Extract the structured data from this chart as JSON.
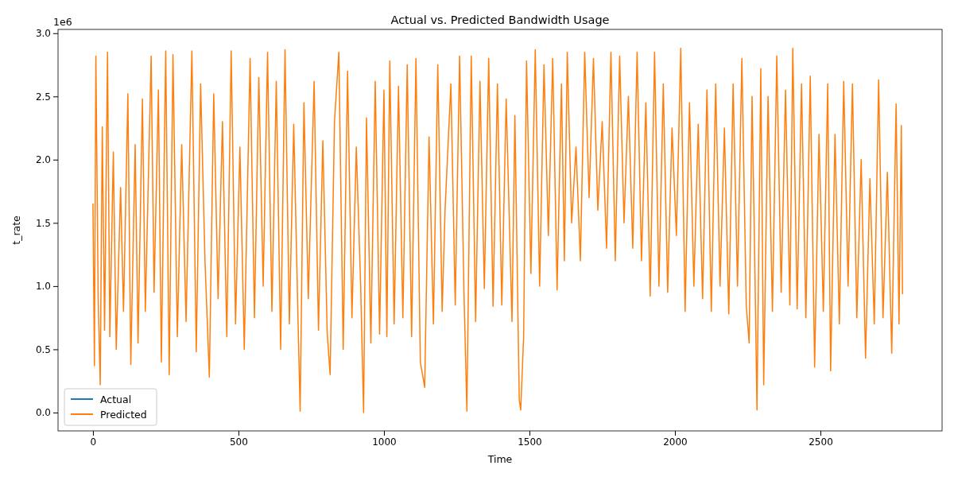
{
  "chart_data": {
    "type": "line",
    "title": "Actual vs. Predicted Bandwidth Usage",
    "xlabel": "Time",
    "ylabel": "t_rate",
    "annotations": [
      "1e6"
    ],
    "xlim": [
      -120,
      2918
    ],
    "xticks": [
      0,
      500,
      1000,
      1500,
      2000,
      2500
    ],
    "ylim": [
      -0.145,
      3.03
    ],
    "yticks": [
      {
        "value": 0,
        "label": "0.0"
      },
      {
        "value": 0.5,
        "label": "0.5"
      },
      {
        "value": 1,
        "label": "1.0"
      },
      {
        "value": 1.5,
        "label": "1.5"
      },
      {
        "value": 2,
        "label": "2.0"
      },
      {
        "value": 2.5,
        "label": "2.5"
      },
      {
        "value": 3,
        "label": "3.0"
      }
    ],
    "grid": false,
    "legend": "bottom left",
    "line_style": "solid",
    "marker": "none",
    "series": [
      {
        "name": "Actual",
        "color": "#1f77b4"
      },
      {
        "name": "Predicted",
        "color": "#ff7f0e",
        "x": [
          0,
          5,
          10,
          18,
          25,
          32,
          40,
          50,
          58,
          70,
          80,
          95,
          105,
          120,
          130,
          145,
          155,
          170,
          180,
          200,
          210,
          225,
          235,
          250,
          262,
          275,
          290,
          305,
          320,
          340,
          355,
          370,
          385,
          400,
          415,
          430,
          445,
          460,
          475,
          490,
          505,
          520,
          540,
          555,
          570,
          585,
          600,
          615,
          630,
          645,
          660,
          675,
          690,
          705,
          712,
          725,
          740,
          760,
          775,
          790,
          805,
          815,
          830,
          845,
          860,
          875,
          890,
          905,
          920,
          930,
          940,
          955,
          970,
          985,
          1000,
          1010,
          1020,
          1035,
          1050,
          1065,
          1080,
          1095,
          1110,
          1125,
          1140,
          1155,
          1170,
          1185,
          1200,
          1210,
          1230,
          1245,
          1260,
          1275,
          1285,
          1300,
          1315,
          1330,
          1345,
          1360,
          1375,
          1390,
          1405,
          1420,
          1440,
          1450,
          1465,
          1470,
          1480,
          1490,
          1505,
          1520,
          1535,
          1550,
          1565,
          1580,
          1595,
          1610,
          1620,
          1630,
          1645,
          1660,
          1675,
          1690,
          1705,
          1720,
          1735,
          1750,
          1765,
          1780,
          1795,
          1810,
          1825,
          1840,
          1855,
          1870,
          1885,
          1900,
          1915,
          1930,
          1945,
          1960,
          1975,
          1990,
          2005,
          2020,
          2035,
          2050,
          2065,
          2080,
          2095,
          2110,
          2125,
          2140,
          2155,
          2170,
          2185,
          2200,
          2215,
          2230,
          2245,
          2255,
          2265,
          2275,
          2282,
          2295,
          2305,
          2320,
          2335,
          2350,
          2365,
          2380,
          2395,
          2405,
          2420,
          2435,
          2450,
          2465,
          2480,
          2495,
          2510,
          2525,
          2535,
          2550,
          2565,
          2580,
          2595,
          2610,
          2625,
          2640,
          2655,
          2670,
          2685,
          2700,
          2715,
          2730,
          2745,
          2760,
          2770,
          2778,
          2782
        ],
        "values": [
          1.65,
          0.37,
          2.82,
          0.9,
          0.22,
          2.26,
          0.65,
          2.85,
          0.6,
          2.06,
          0.5,
          1.78,
          0.8,
          2.52,
          0.38,
          2.12,
          0.55,
          2.48,
          0.8,
          2.82,
          0.95,
          2.55,
          0.4,
          2.86,
          0.3,
          2.83,
          0.6,
          2.12,
          0.72,
          2.86,
          0.48,
          2.6,
          1.2,
          0.28,
          2.52,
          0.9,
          2.3,
          0.6,
          2.86,
          0.7,
          2.1,
          0.5,
          2.8,
          0.75,
          2.65,
          1.0,
          2.85,
          0.8,
          2.62,
          0.5,
          2.87,
          0.7,
          2.28,
          0.7,
          0.01,
          2.45,
          0.9,
          2.62,
          0.65,
          2.15,
          0.63,
          0.3,
          2.3,
          2.85,
          0.5,
          2.7,
          0.75,
          2.1,
          1.0,
          0.0,
          2.33,
          0.55,
          2.62,
          0.62,
          2.55,
          0.6,
          2.78,
          0.7,
          2.58,
          0.75,
          2.75,
          0.6,
          2.8,
          0.4,
          0.2,
          2.18,
          0.7,
          2.75,
          0.8,
          1.6,
          2.6,
          0.85,
          2.82,
          0.95,
          0.01,
          2.82,
          0.72,
          2.62,
          0.98,
          2.8,
          0.84,
          2.6,
          0.85,
          2.48,
          0.72,
          2.35,
          0.1,
          0.02,
          0.6,
          2.78,
          1.1,
          2.87,
          1.0,
          2.75,
          1.4,
          2.8,
          0.97,
          2.6,
          1.2,
          2.85,
          1.5,
          2.1,
          1.2,
          2.85,
          1.7,
          2.8,
          1.6,
          2.3,
          1.3,
          2.85,
          1.2,
          2.82,
          1.5,
          2.5,
          1.3,
          2.85,
          1.2,
          2.45,
          0.92,
          2.85,
          1.0,
          2.6,
          0.95,
          2.25,
          1.4,
          2.88,
          0.8,
          2.45,
          1.0,
          2.28,
          0.9,
          2.55,
          0.8,
          2.6,
          1.0,
          2.25,
          0.78,
          2.6,
          1.0,
          2.8,
          0.85,
          0.55,
          2.5,
          1.1,
          0.02,
          2.72,
          0.22,
          2.5,
          0.8,
          2.82,
          0.95,
          2.55,
          0.85,
          2.88,
          0.82,
          2.6,
          0.75,
          2.66,
          0.36,
          2.2,
          0.8,
          2.6,
          0.33,
          2.2,
          0.7,
          2.62,
          1.0,
          2.6,
          0.75,
          2.0,
          0.43,
          1.85,
          0.7,
          2.63,
          0.75,
          1.9,
          0.47,
          2.44,
          0.7,
          2.27,
          0.94
        ]
      }
    ]
  }
}
